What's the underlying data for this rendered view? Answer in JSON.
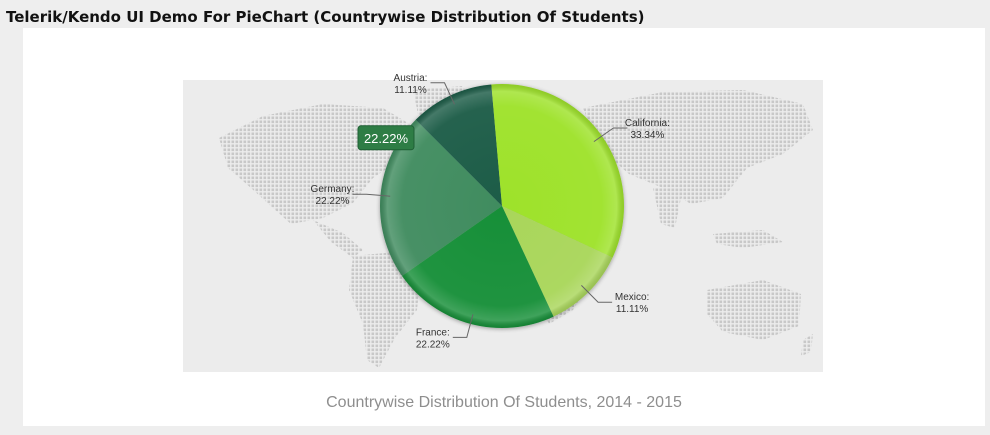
{
  "page_heading": "Telerik/Kendo UI Demo For PieChart (Countrywise Distribution Of Students)",
  "colors": {
    "Germany": "#3f8c5e",
    "Austria": "#1a5c46",
    "California": "#9ee22a",
    "Mexico": "#a9d65a",
    "France": "#188f38",
    "tooltip_bg": "#2e7d45",
    "leader_line": "#666666",
    "label_text": "#333333"
  },
  "tooltip": {
    "category": "Germany",
    "text": "22.22%"
  },
  "chart_data": {
    "type": "pie",
    "title": "Countrywise Distribution Of Students, 2014 - 2015",
    "slices": [
      {
        "category": "Germany",
        "value": 22.22,
        "label": "22.22%"
      },
      {
        "category": "Austria",
        "value": 11.11,
        "label": "11.11%"
      },
      {
        "category": "California",
        "value": 33.34,
        "label": "33.34%"
      },
      {
        "category": "Mexico",
        "value": 11.11,
        "label": "11.11%"
      },
      {
        "category": "France",
        "value": 22.22,
        "label": "22.22%"
      }
    ]
  }
}
